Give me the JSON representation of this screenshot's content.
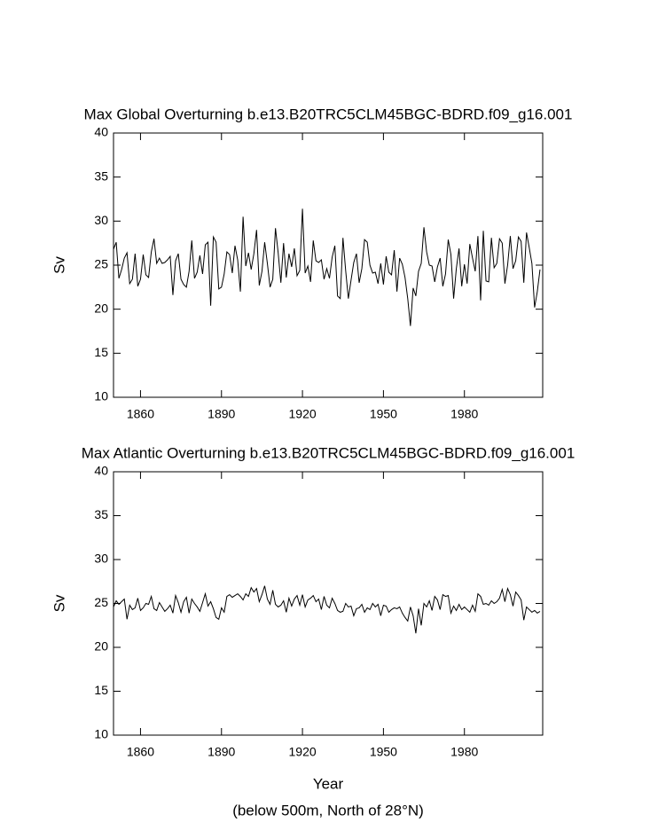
{
  "chart_data": [
    {
      "type": "line",
      "title": "Max Global Overturning b.e13.B20TRC5CLM45BGC-BDRD.f09_g16.001",
      "ylabel": "Sv",
      "x": [
        1850,
        1851,
        1852,
        1853,
        1854,
        1855,
        1856,
        1857,
        1858,
        1859,
        1860,
        1861,
        1862,
        1863,
        1864,
        1865,
        1866,
        1867,
        1868,
        1869,
        1870,
        1871,
        1872,
        1873,
        1874,
        1875,
        1876,
        1877,
        1878,
        1879,
        1880,
        1881,
        1882,
        1883,
        1884,
        1885,
        1886,
        1887,
        1888,
        1889,
        1890,
        1891,
        1892,
        1893,
        1894,
        1895,
        1896,
        1897,
        1898,
        1899,
        1900,
        1901,
        1902,
        1903,
        1904,
        1905,
        1906,
        1907,
        1908,
        1909,
        1910,
        1911,
        1912,
        1913,
        1914,
        1915,
        1916,
        1917,
        1918,
        1919,
        1920,
        1921,
        1922,
        1923,
        1924,
        1925,
        1926,
        1927,
        1928,
        1929,
        1930,
        1931,
        1932,
        1933,
        1934,
        1935,
        1936,
        1937,
        1938,
        1939,
        1940,
        1941,
        1942,
        1943,
        1944,
        1945,
        1946,
        1947,
        1948,
        1949,
        1950,
        1951,
        1952,
        1953,
        1954,
        1955,
        1956,
        1957,
        1958,
        1959,
        1960,
        1961,
        1962,
        1963,
        1964,
        1965,
        1966,
        1967,
        1968,
        1969,
        1970,
        1971,
        1972,
        1973,
        1974,
        1975,
        1976,
        1977,
        1978,
        1979,
        1980,
        1981,
        1982,
        1983,
        1984,
        1985,
        1986,
        1987,
        1988,
        1989,
        1990,
        1991,
        1992,
        1993,
        1994,
        1995,
        1996,
        1997,
        1998,
        1999,
        2000,
        2001,
        2002,
        2003,
        2004,
        2005,
        2006,
        2007,
        2008
      ],
      "series": [
        {
          "color": "#000000",
          "values": [
            26.8,
            27.6,
            23.5,
            24.5,
            25.8,
            26.4,
            22.9,
            23.4,
            26.3,
            22.6,
            23.4,
            26.2,
            23.9,
            23.6,
            26.5,
            28.0,
            25.2,
            25.8,
            25.2,
            25.3,
            25.6,
            26.0,
            21.6,
            25.5,
            26.3,
            23.4,
            22.8,
            22.5,
            24.3,
            27.8,
            23.5,
            24.2,
            26.1,
            24.0,
            27.3,
            27.6,
            20.4,
            28.2,
            27.6,
            22.3,
            22.5,
            24.0,
            26.5,
            26.2,
            24.1,
            27.2,
            25.6,
            22.0,
            30.5,
            24.9,
            26.4,
            24.5,
            26.3,
            29.0,
            22.7,
            24.3,
            27.6,
            25.2,
            22.5,
            23.4,
            29.2,
            26.4,
            23.0,
            27.5,
            23.6,
            26.3,
            24.8,
            26.9,
            23.8,
            24.4,
            31.4,
            24.1,
            24.9,
            23.1,
            27.8,
            25.5,
            25.3,
            25.6,
            23.4,
            24.6,
            23.5,
            25.9,
            27.2,
            21.5,
            21.2,
            28.1,
            24.4,
            21.2,
            23.3,
            25.3,
            26.3,
            23.0,
            24.6,
            27.9,
            27.6,
            25.0,
            24.1,
            24.2,
            22.9,
            25.2,
            22.8,
            26.0,
            24.2,
            23.9,
            26.7,
            22.0,
            25.8,
            25.1,
            23.6,
            21.2,
            18.1,
            22.4,
            21.5,
            24.3,
            25.2,
            29.3,
            26.5,
            25.0,
            24.9,
            23.1,
            24.8,
            25.8,
            22.6,
            24.0,
            27.9,
            26.2,
            21.2,
            24.6,
            26.9,
            22.6,
            25.1,
            22.9,
            27.4,
            25.8,
            24.3,
            28.3,
            21.0,
            28.9,
            23.2,
            23.1,
            28.1,
            24.7,
            25.2,
            28.0,
            27.5,
            22.9,
            25.0,
            28.3,
            24.6,
            25.5,
            28.2,
            27.7,
            23.0,
            28.7,
            27.0,
            25.2,
            20.2,
            22.0,
            24.5
          ]
        }
      ],
      "xlim": [
        1850,
        2009
      ],
      "xticks": [
        1860,
        1890,
        1920,
        1950,
        1980
      ],
      "ylim": [
        10,
        40
      ],
      "yticks": [
        10,
        15,
        20,
        25,
        30,
        35,
        40
      ]
    },
    {
      "type": "line",
      "title": "Max Atlantic Overturning b.e13.B20TRC5CLM45BGC-BDRD.f09_g16.001",
      "ylabel": "Sv",
      "xlabel": "Year",
      "note": "(below 500m, North of 28°N)",
      "x": [
        1850,
        1851,
        1852,
        1853,
        1854,
        1855,
        1856,
        1857,
        1858,
        1859,
        1860,
        1861,
        1862,
        1863,
        1864,
        1865,
        1866,
        1867,
        1868,
        1869,
        1870,
        1871,
        1872,
        1873,
        1874,
        1875,
        1876,
        1877,
        1878,
        1879,
        1880,
        1881,
        1882,
        1883,
        1884,
        1885,
        1886,
        1887,
        1888,
        1889,
        1890,
        1891,
        1892,
        1893,
        1894,
        1895,
        1896,
        1897,
        1898,
        1899,
        1900,
        1901,
        1902,
        1903,
        1904,
        1905,
        1906,
        1907,
        1908,
        1909,
        1910,
        1911,
        1912,
        1913,
        1914,
        1915,
        1916,
        1917,
        1918,
        1919,
        1920,
        1921,
        1922,
        1923,
        1924,
        1925,
        1926,
        1927,
        1928,
        1929,
        1930,
        1931,
        1932,
        1933,
        1934,
        1935,
        1936,
        1937,
        1938,
        1939,
        1940,
        1941,
        1942,
        1943,
        1944,
        1945,
        1946,
        1947,
        1948,
        1949,
        1950,
        1951,
        1952,
        1953,
        1954,
        1955,
        1956,
        1957,
        1958,
        1959,
        1960,
        1961,
        1962,
        1963,
        1964,
        1965,
        1966,
        1967,
        1968,
        1969,
        1970,
        1971,
        1972,
        1973,
        1974,
        1975,
        1976,
        1977,
        1978,
        1979,
        1980,
        1981,
        1982,
        1983,
        1984,
        1985,
        1986,
        1987,
        1988,
        1989,
        1990,
        1991,
        1992,
        1993,
        1994,
        1995,
        1996,
        1997,
        1998,
        1999,
        2000,
        2001,
        2002,
        2003,
        2004,
        2005,
        2006,
        2007,
        2008
      ],
      "series": [
        {
          "color": "#000000",
          "values": [
            24.6,
            25.3,
            24.9,
            25.2,
            25.5,
            23.2,
            24.8,
            24.3,
            24.5,
            25.6,
            24.2,
            24.5,
            25.0,
            24.9,
            25.8,
            24.4,
            24.2,
            25.1,
            24.6,
            24.1,
            24.4,
            24.8,
            23.9,
            25.9,
            25.1,
            24.0,
            25.2,
            25.7,
            23.9,
            25.5,
            25.0,
            24.6,
            24.1,
            25.1,
            26.1,
            24.7,
            25.2,
            24.4,
            23.4,
            23.2,
            24.5,
            24.0,
            25.8,
            26.0,
            25.7,
            25.9,
            26.1,
            25.8,
            25.4,
            26.1,
            25.8,
            26.8,
            26.3,
            26.7,
            25.2,
            26.0,
            27.0,
            25.5,
            24.9,
            26.5,
            24.9,
            24.6,
            24.8,
            25.3,
            24.0,
            25.6,
            24.7,
            25.5,
            25.9,
            24.8,
            26.0,
            24.6,
            25.4,
            25.6,
            25.9,
            25.2,
            25.5,
            24.3,
            25.8,
            24.8,
            24.5,
            25.6,
            25.0,
            24.2,
            24.0,
            24.1,
            25.0,
            24.6,
            24.7,
            23.6,
            24.4,
            24.5,
            24.9,
            24.0,
            24.5,
            24.3,
            25.0,
            24.6,
            24.9,
            23.6,
            24.8,
            24.7,
            24.0,
            24.3,
            24.5,
            24.4,
            24.6,
            23.9,
            23.4,
            23.0,
            24.6,
            23.6,
            21.6,
            24.4,
            22.5,
            25.0,
            24.6,
            25.3,
            24.2,
            25.8,
            25.4,
            24.3,
            26.0,
            25.8,
            25.9,
            23.9,
            24.7,
            24.2,
            24.9,
            24.3,
            24.6,
            24.3,
            24.0,
            24.8,
            24.1,
            26.1,
            25.8,
            24.9,
            25.0,
            24.8,
            25.3,
            25.0,
            25.2,
            25.6,
            26.6,
            25.2,
            26.7,
            26.0,
            24.7,
            26.3,
            25.9,
            25.4,
            23.1,
            24.6,
            24.3,
            24.0,
            24.2,
            23.9,
            24.1
          ]
        }
      ],
      "xlim": [
        1850,
        2009
      ],
      "xticks": [
        1860,
        1890,
        1920,
        1950,
        1980
      ],
      "ylim": [
        10,
        40
      ],
      "yticks": [
        10,
        15,
        20,
        25,
        30,
        35,
        40
      ]
    }
  ]
}
